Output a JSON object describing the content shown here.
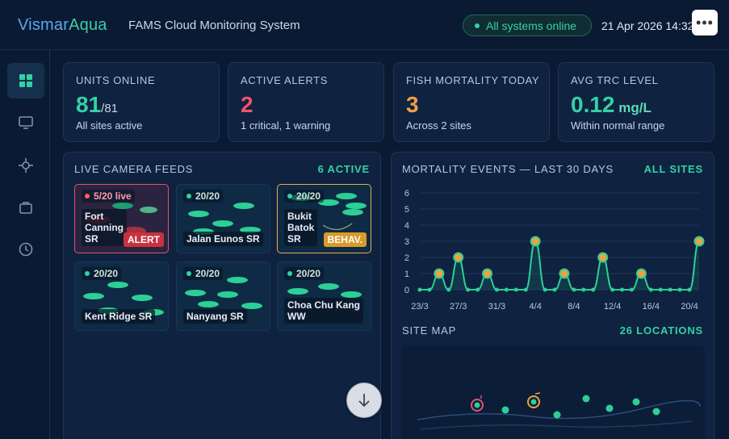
{
  "header": {
    "brand_part1": "Vismar",
    "brand_part2": "Aqua",
    "app_title": "FAMS Cloud Monitoring System",
    "status": "All systems online",
    "date": "21 Apr 2026  14:32",
    "more_label": "•••"
  },
  "sidebar": {
    "items": [
      {
        "icon": "dashboard-grid-icon",
        "active": true
      },
      {
        "icon": "monitor-icon",
        "active": false
      },
      {
        "icon": "crosshair-icon",
        "active": false
      },
      {
        "icon": "briefcase-icon",
        "active": false
      },
      {
        "icon": "clock-icon",
        "active": false
      }
    ]
  },
  "kpis": [
    {
      "label": "UNITS ONLINE",
      "value": "81",
      "unit": "/81",
      "sub": "All sites active",
      "color": "#34d1a6"
    },
    {
      "label": "ACTIVE ALERTS",
      "value": "2",
      "unit": "",
      "sub": "1 critical, 1 warning",
      "color": "#ef5468"
    },
    {
      "label": "FISH MORTALITY TODAY",
      "value": "3",
      "unit": "",
      "sub": "Across 2 sites",
      "color": "#f0a040"
    },
    {
      "label": "AVG TRC LEVEL",
      "value": "0.12",
      "unit": " mg/L",
      "sub": "Within normal range",
      "color": "#34d1a6"
    }
  ],
  "feeds_panel": {
    "title": "LIVE CAMERA FEEDS",
    "link": "6 ACTIVE",
    "feeds": [
      {
        "count": "5/20 live",
        "name": "Fort\nCanning\nSR",
        "tag": "ALERT",
        "state": "alert"
      },
      {
        "count": "20/20",
        "name": "Jalan Eunos SR",
        "tag": "",
        "state": "normal"
      },
      {
        "count": "20/20",
        "name": "Bukit\nBatok\nSR",
        "tag": "BEHAV.",
        "state": "behav"
      },
      {
        "count": "20/20",
        "name": "Kent Ridge SR",
        "tag": "",
        "state": "normal"
      },
      {
        "count": "20/20",
        "name": "Nanyang SR",
        "tag": "",
        "state": "normal"
      },
      {
        "count": "20/20",
        "name": "Choa Chu Kang\nWW",
        "tag": "",
        "state": "normal"
      }
    ]
  },
  "mortality_panel": {
    "title": "MORTALITY EVENTS — LAST 30 DAYS",
    "link": "ALL SITES"
  },
  "chart_data": {
    "type": "line",
    "title": "MORTALITY EVENTS — LAST 30 DAYS",
    "x": [
      "23/3",
      "24/3",
      "25/3",
      "26/3",
      "27/3",
      "28/3",
      "29/3",
      "30/3",
      "31/3",
      "1/4",
      "2/4",
      "3/4",
      "4/4",
      "5/4",
      "6/4",
      "7/4",
      "8/4",
      "9/4",
      "10/4",
      "11/4",
      "12/4",
      "13/4",
      "14/4",
      "15/4",
      "16/4",
      "17/4",
      "18/4",
      "19/4",
      "20/4",
      "21/4"
    ],
    "values": [
      0,
      0,
      1,
      0,
      2,
      0,
      0,
      1,
      0,
      0,
      0,
      0,
      3,
      0,
      0,
      1,
      0,
      0,
      0,
      2,
      0,
      0,
      0,
      1,
      0,
      0,
      0,
      0,
      0,
      3
    ],
    "x_tick_labels": [
      "23/3",
      "27/3",
      "31/3",
      "4/4",
      "8/4",
      "12/4",
      "16/4",
      "20/4"
    ],
    "y_ticks": [
      "0",
      "1",
      "2",
      "3",
      "4",
      "5",
      "6"
    ],
    "ylim": [
      0,
      6
    ],
    "grid": true,
    "colors": {
      "line": "#2ccf95",
      "marker": "#f0a040",
      "zero_marker": "#2ccf95"
    }
  },
  "sitemap_panel": {
    "title": "SITE MAP",
    "link": "26 LOCATIONS"
  }
}
